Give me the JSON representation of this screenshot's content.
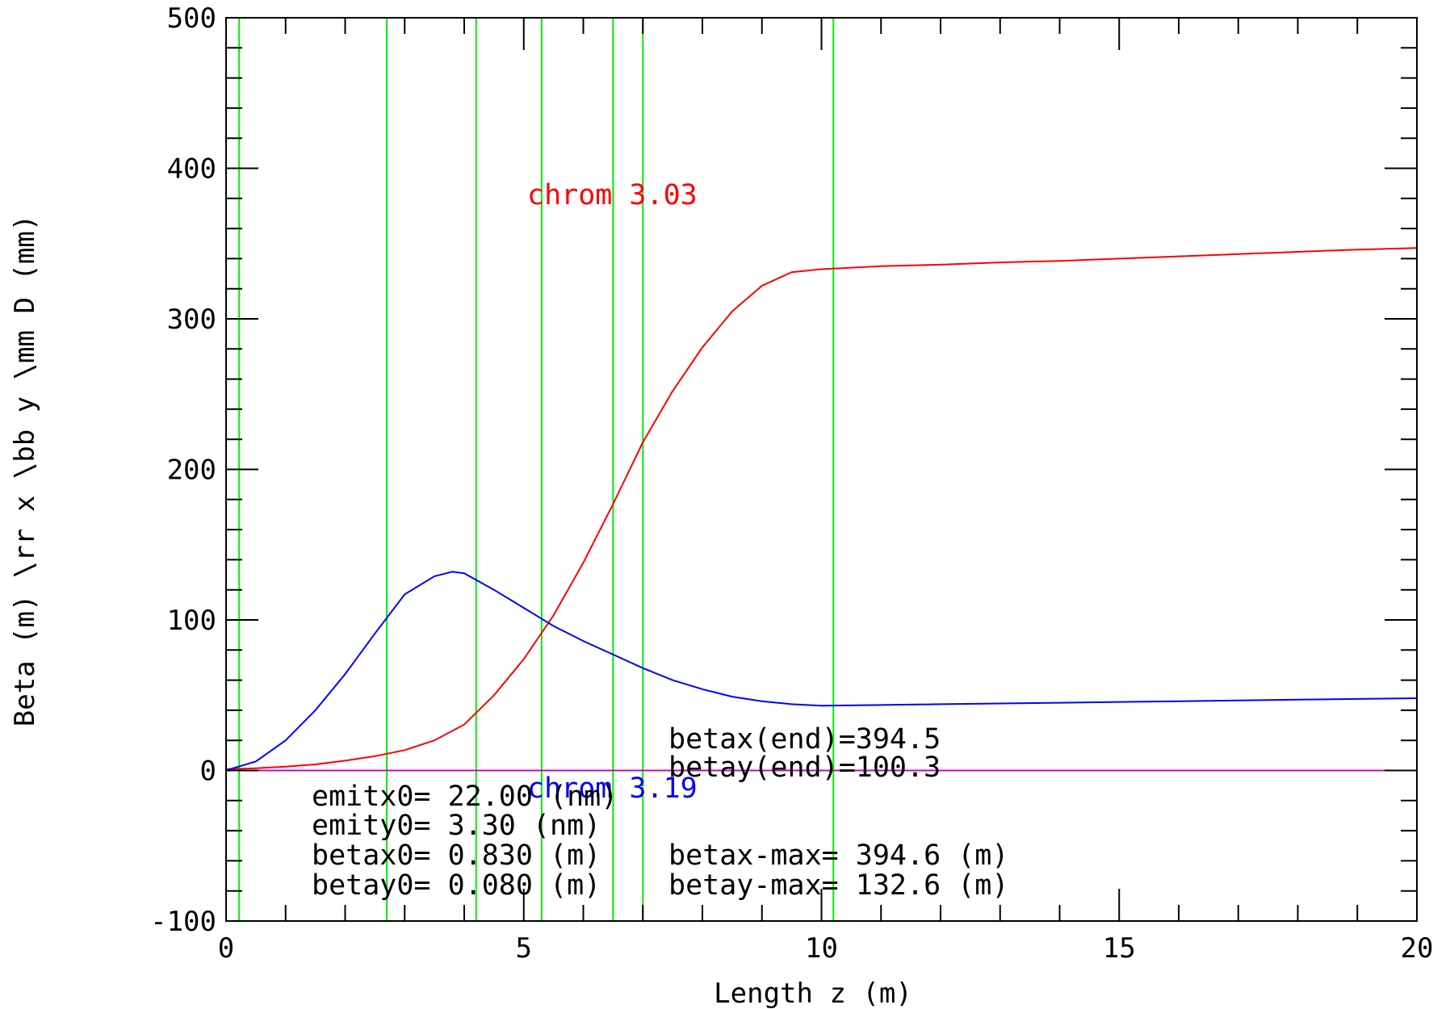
{
  "chart_data": {
    "type": "line",
    "title": "",
    "xlabel": "Length z (m)",
    "ylabel": "Beta (m) \\rr x \\bb y \\mm D (mm)",
    "xlim": [
      0,
      20
    ],
    "ylim": [
      -100,
      500
    ],
    "xticks": [
      0,
      5,
      10,
      15,
      20
    ],
    "yticks": [
      -100,
      0,
      100,
      200,
      300,
      400,
      500
    ],
    "grid": false,
    "element_markers_x": [
      0.22,
      2.7,
      4.2,
      5.3,
      6.5,
      7.0,
      10.2
    ],
    "series": [
      {
        "name": "",
        "color": "#ff0000",
        "x": [
          0,
          0.5,
          1.0,
          1.5,
          2.0,
          2.5,
          3.0,
          3.5,
          4.0,
          4.5,
          5.0,
          5.5,
          6.0,
          6.5,
          7.0,
          7.5,
          8.0,
          8.5,
          9.0,
          9.5,
          10.0,
          11.0,
          12.0,
          13.0,
          14.0,
          15.0,
          16.0,
          17.0,
          18.0,
          19.0,
          20.0
        ],
        "values": [
          0.8,
          1.5,
          2.6,
          4.0,
          6.5,
          9.5,
          13.5,
          20.0,
          30.5,
          50.0,
          74.0,
          103.0,
          138.0,
          177.0,
          218.0,
          252.0,
          281.0,
          305.0,
          322.0,
          331.0,
          333.0,
          335.0,
          336.0,
          337.5,
          338.5,
          340.0,
          341.5,
          343.0,
          344.5,
          346.0,
          347.0
        ]
      },
      {
        "name": "",
        "color": "#0000ff",
        "x": [
          0,
          0.5,
          1.0,
          1.5,
          2.0,
          2.5,
          3.0,
          3.5,
          3.8,
          4.0,
          4.5,
          5.0,
          5.5,
          6.0,
          6.5,
          7.0,
          7.5,
          8.0,
          8.5,
          9.0,
          9.5,
          10.0,
          11.0,
          12.0,
          13.0,
          14.0,
          15.0,
          16.0,
          17.0,
          18.0,
          19.0,
          20.0
        ],
        "values": [
          0.1,
          6.0,
          20.0,
          40.0,
          64.0,
          91.0,
          117.0,
          129.0,
          132.0,
          131.0,
          120.0,
          108.0,
          96.0,
          86.0,
          77.0,
          68.0,
          60.0,
          54.0,
          49.0,
          46.0,
          44.0,
          43.0,
          43.5,
          44.0,
          44.5,
          45.0,
          45.5,
          46.0,
          46.5,
          47.0,
          47.5,
          48.0
        ]
      },
      {
        "name": "",
        "color": "#cc00cc",
        "x": [
          0,
          20
        ],
        "values": [
          0,
          0
        ]
      }
    ],
    "annotations": {
      "chrom_x": "chrom  3.03",
      "chrom_y": "chrom  3.19",
      "betax_end": "betax(end)=394.5",
      "betay_end": "betay(end)=100.3",
      "emitx0": "emitx0= 22.00 (nm)",
      "emity0": "emity0=  3.30 (nm)",
      "betax0": "betax0= 0.830 (m)",
      "betay0": "betay0= 0.080 (m)",
      "betax_max": "betax-max=  394.6 (m)",
      "betay_max": "betay-max=  132.6 (m)"
    },
    "colors": {
      "markers": "#00ee00",
      "axis": "#000000"
    }
  }
}
